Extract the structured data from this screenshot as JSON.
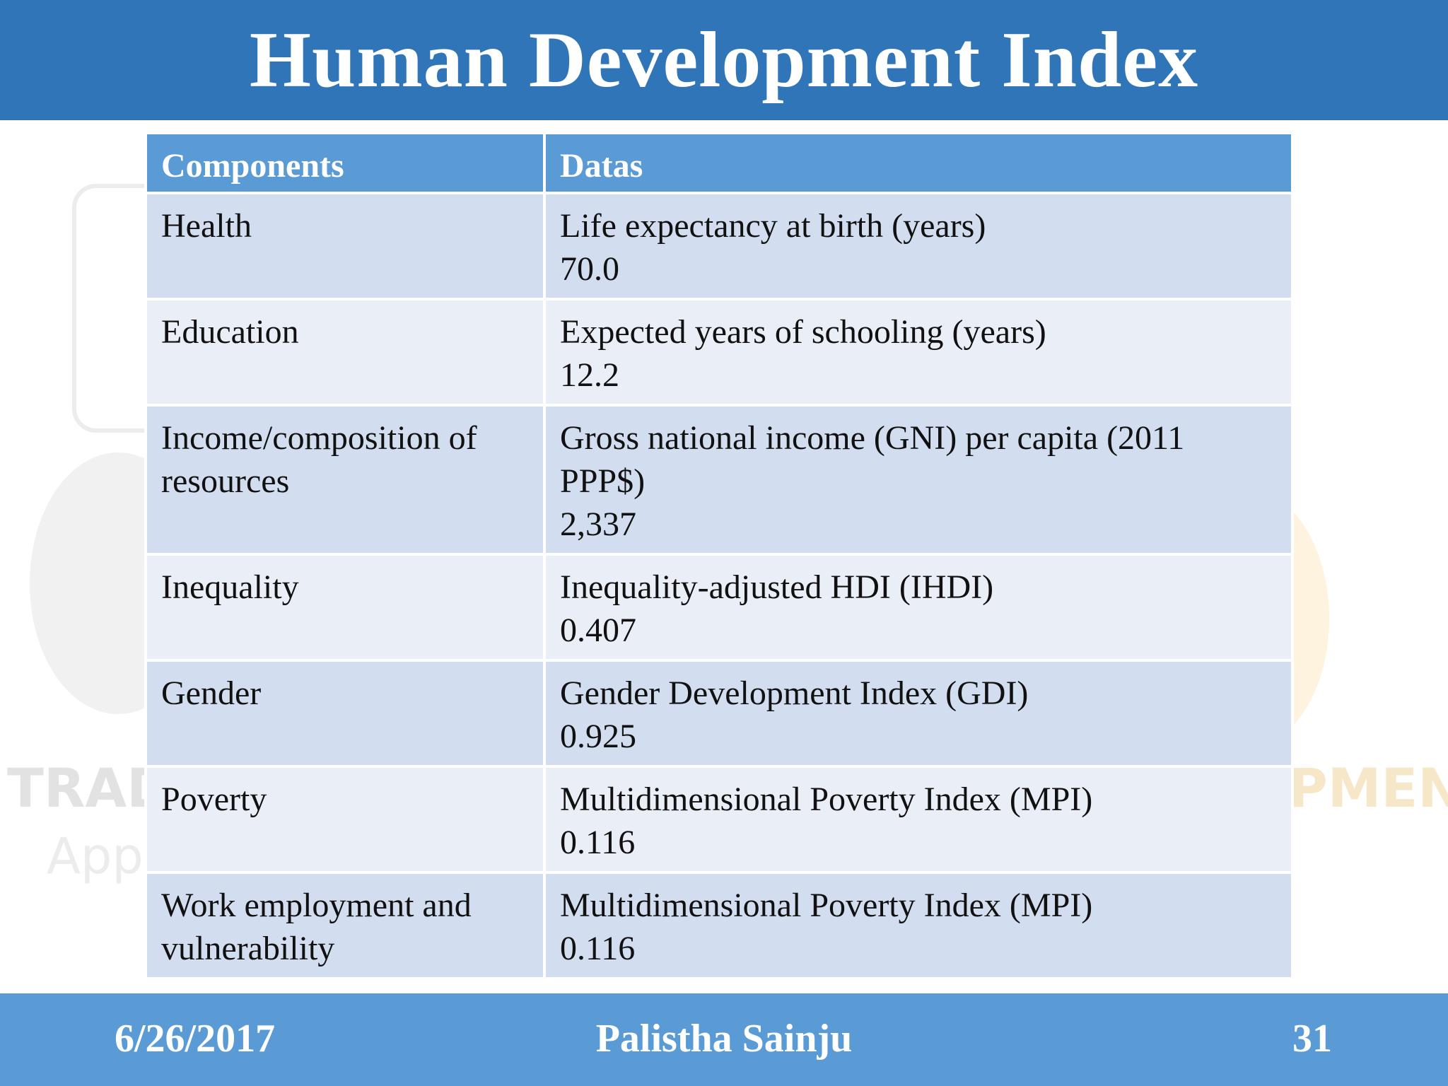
{
  "slide": {
    "title": "Human Development Index"
  },
  "table": {
    "headers": [
      "Components",
      "Datas"
    ],
    "rows": [
      {
        "component": [
          "Health"
        ],
        "data": [
          "Life expectancy at birth (years)",
          "70.0"
        ]
      },
      {
        "component": [
          "Education"
        ],
        "data": [
          "Expected years of schooling (years)",
          "12.2"
        ]
      },
      {
        "component": [
          "Income/composition of",
          "resources"
        ],
        "data": [
          "Gross national income (GNI) per capita (2011",
          "PPP$)",
          "2,337"
        ]
      },
      {
        "component": [
          "Inequality"
        ],
        "data": [
          "Inequality-adjusted HDI (IHDI)",
          "0.407"
        ]
      },
      {
        "component": [
          "Gender"
        ],
        "data": [
          "Gender Development Index (GDI)",
          "0.925"
        ]
      },
      {
        "component": [
          "Poverty"
        ],
        "data": [
          "Multidimensional Poverty Index (MPI)",
          "0.116"
        ]
      },
      {
        "component": [
          "Work employment and",
          "vulnerability"
        ],
        "data": [
          "Multidimensional Poverty Index (MPI)",
          "0.116"
        ]
      }
    ]
  },
  "watermark": {
    "left_text": "TRADIT",
    "left_text_2": "Appr",
    "right_text": "PMENT"
  },
  "footer": {
    "date": "6/26/2017",
    "author": "Palistha Sainju",
    "page": "31"
  },
  "colors": {
    "title_bar": "#2f75b8",
    "header_row": "#5b9bd5",
    "row_dark": "#d2deef",
    "row_light": "#eaeff7",
    "footer_bar": "#5b9bd5"
  }
}
